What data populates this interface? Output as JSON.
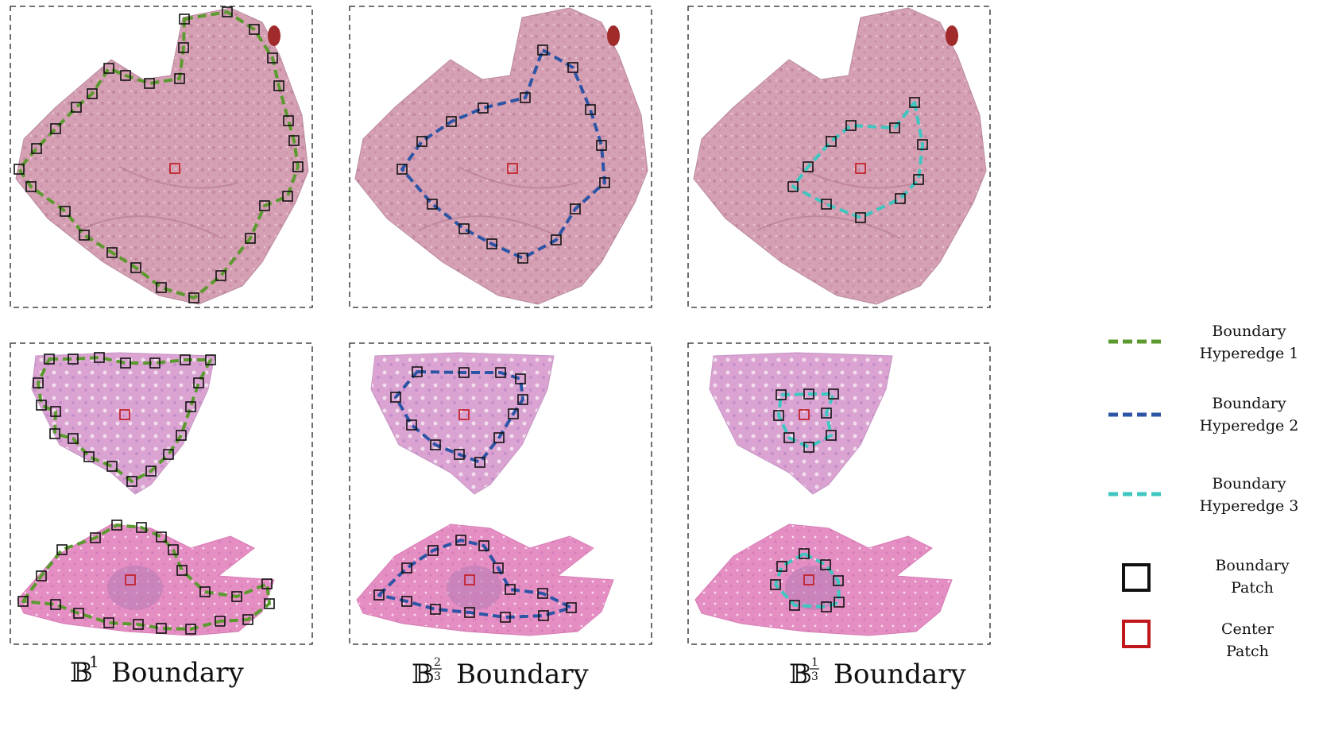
{
  "captions": [
    {
      "base": "𝔹",
      "exp": "1",
      "word": "Boundary"
    },
    {
      "base": "𝔹",
      "exp_num": "2",
      "exp_den": "3",
      "word": "Boundary"
    },
    {
      "base": "𝔹",
      "exp_num": "1",
      "exp_den": "3",
      "word": "Boundary"
    }
  ],
  "legend": [
    {
      "kind": "line",
      "color": "#5b9a2f",
      "line1": "Boundary",
      "line2": "Hyperedge 1"
    },
    {
      "kind": "line",
      "color": "#2d55a5",
      "line1": "Boundary",
      "line2": "Hyperedge 2"
    },
    {
      "kind": "line",
      "color": "#3ec6c0",
      "line1": "Boundary",
      "line2": "Hyperedge 3"
    },
    {
      "kind": "patch",
      "color": "#111111",
      "line1": "Boundary",
      "line2": "Patch"
    },
    {
      "kind": "patch",
      "color": "#c0171c",
      "line1": "Center",
      "line2": "Patch"
    }
  ],
  "colors": {
    "hyperedge1": "#5b9a2f",
    "hyperedge2": "#2d55a5",
    "hyperedge3": "#3ec6c0",
    "boundary_patch": "#111111",
    "center_patch": "#c0171c",
    "tissue_top": "#d9a4b8",
    "tissue_bottom_upper": "#dca2cf",
    "tissue_bottom_lower": "#e58bc0"
  }
}
